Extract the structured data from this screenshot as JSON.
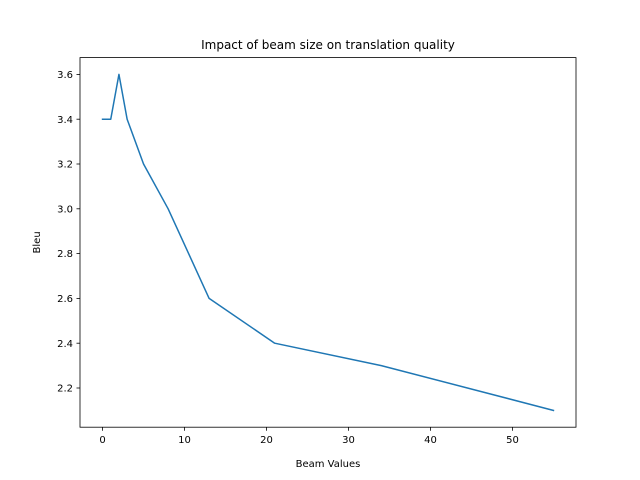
{
  "chart_data": {
    "type": "line",
    "title": "Impact of beam size on translation quality",
    "xlabel": "Beam Values",
    "ylabel": "Bleu",
    "xlim": [
      -2.75,
      57.75
    ],
    "ylim": [
      2.025,
      3.675
    ],
    "xticks": [
      0,
      10,
      20,
      30,
      40,
      50
    ],
    "yticks": [
      2.2,
      2.4,
      2.6,
      2.8,
      3.0,
      3.2,
      3.4,
      3.6
    ],
    "xtick_labels": [
      "0",
      "10",
      "20",
      "30",
      "40",
      "50"
    ],
    "ytick_labels": [
      "2.2",
      "2.4",
      "2.6",
      "2.8",
      "3.0",
      "3.2",
      "3.4",
      "3.6"
    ],
    "grid": false,
    "legend": "none",
    "series": [
      {
        "color": "#1f77b4",
        "x": [
          0,
          1,
          2,
          3,
          5,
          8,
          13,
          21,
          34,
          55
        ],
        "y": [
          3.4,
          3.4,
          3.6,
          3.4,
          3.2,
          3.0,
          2.6,
          2.4,
          2.3,
          2.1
        ]
      }
    ]
  }
}
